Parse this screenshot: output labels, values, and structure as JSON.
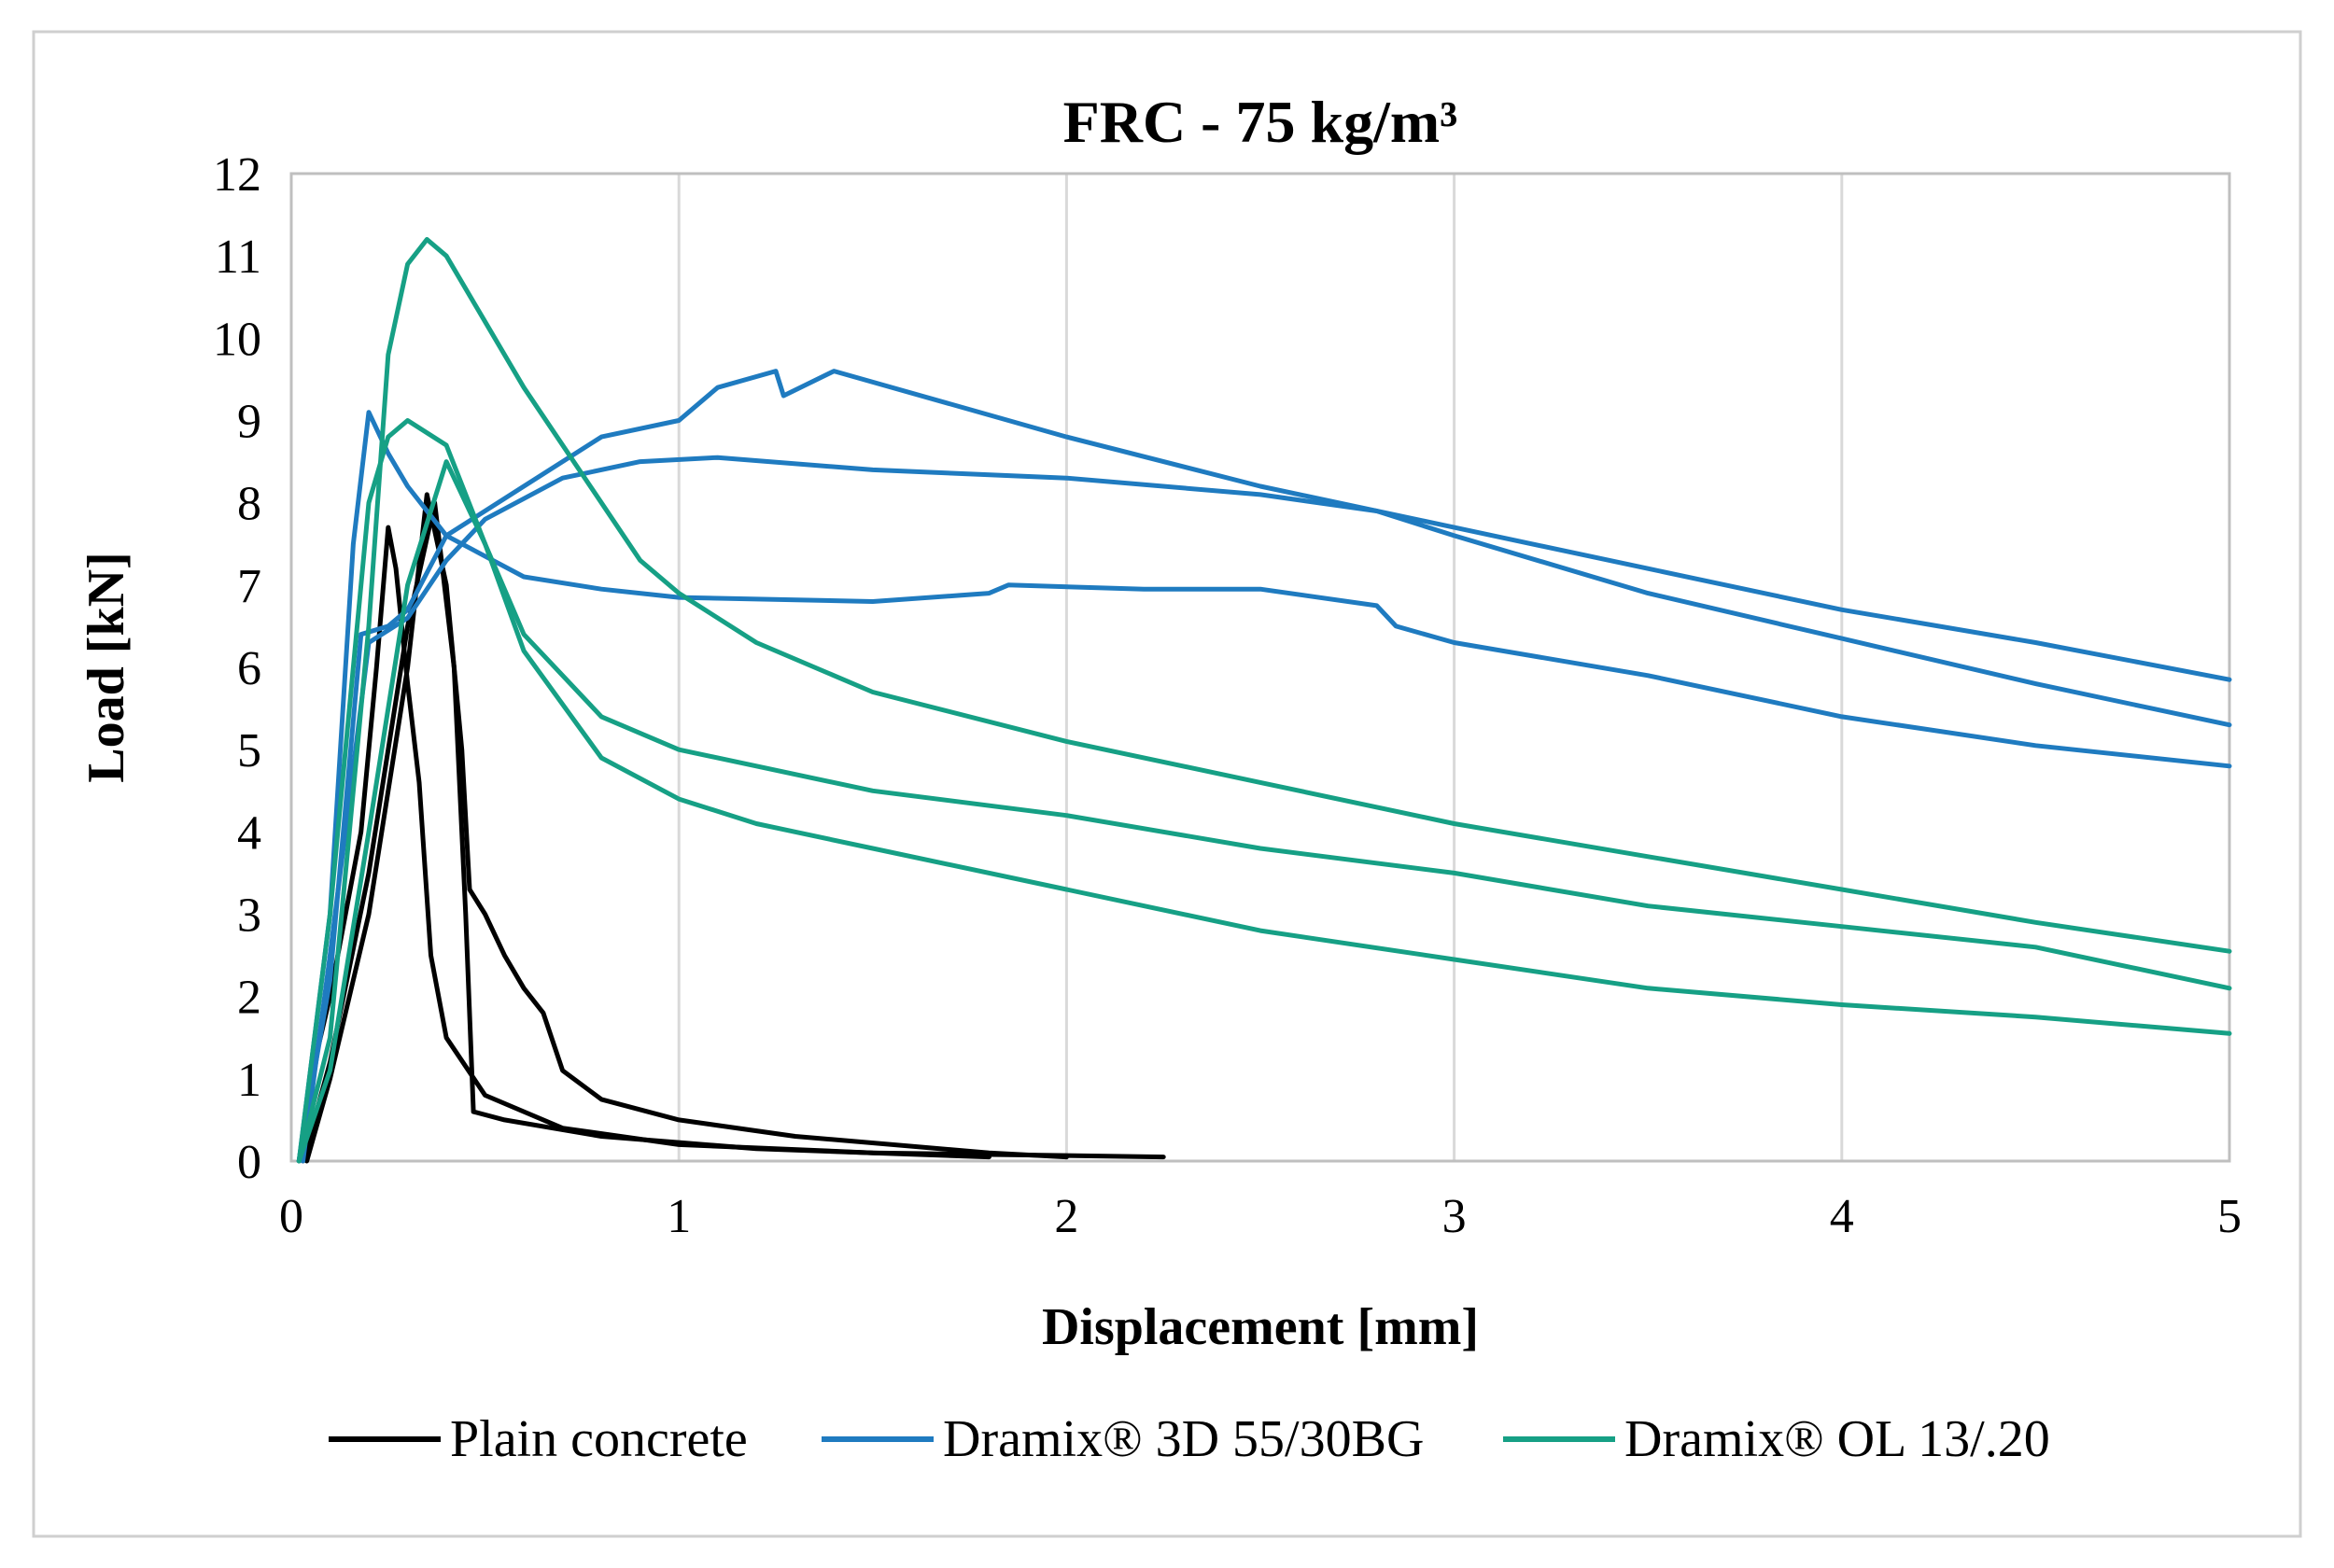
{
  "chart_data": {
    "type": "line",
    "title": "FRC - 75 kg/m³",
    "xlabel": "Displacement [mm]",
    "ylabel": "Load [kN]",
    "xlim": [
      0,
      5
    ],
    "ylim": [
      0,
      12
    ],
    "x_ticks": [
      "0",
      "1",
      "2",
      "3",
      "4",
      "5"
    ],
    "y_ticks": [
      "0",
      "1",
      "2",
      "3",
      "4",
      "5",
      "6",
      "7",
      "8",
      "9",
      "10",
      "11",
      "12"
    ],
    "grid": "vertical",
    "legend": "bottom",
    "legend_entries": [
      {
        "name": "Plain concrete",
        "color": "#000000"
      },
      {
        "name": "Dramix® 3D 55/30BG",
        "color": "#1f7bc0"
      },
      {
        "name": "Dramix® OL 13/.20",
        "color": "#16a085"
      }
    ],
    "series": [
      {
        "group": "Plain concrete",
        "color": "#000000",
        "points": [
          [
            0.02,
            0
          ],
          [
            0.05,
            1
          ],
          [
            0.1,
            2
          ],
          [
            0.18,
            4
          ],
          [
            0.22,
            6
          ],
          [
            0.25,
            7.7
          ],
          [
            0.27,
            7.2
          ],
          [
            0.3,
            5.8
          ],
          [
            0.33,
            4.6
          ],
          [
            0.36,
            2.5
          ],
          [
            0.4,
            1.5
          ],
          [
            0.5,
            0.8
          ],
          [
            0.7,
            0.4
          ],
          [
            1,
            0.2
          ],
          [
            1.5,
            0.1
          ],
          [
            2.25,
            0.05
          ]
        ]
      },
      {
        "group": "Plain concrete",
        "color": "#000000",
        "points": [
          [
            0.04,
            0
          ],
          [
            0.1,
            1
          ],
          [
            0.2,
            3
          ],
          [
            0.3,
            6
          ],
          [
            0.35,
            8.1
          ],
          [
            0.4,
            7
          ],
          [
            0.44,
            5
          ],
          [
            0.46,
            3.3
          ],
          [
            0.5,
            3
          ],
          [
            0.55,
            2.5
          ],
          [
            0.6,
            2.1
          ],
          [
            0.65,
            1.8
          ],
          [
            0.7,
            1.1
          ],
          [
            0.8,
            0.75
          ],
          [
            1,
            0.5
          ],
          [
            1.3,
            0.3
          ],
          [
            1.8,
            0.1
          ],
          [
            2,
            0.05
          ]
        ]
      },
      {
        "group": "Plain concrete",
        "color": "#000000",
        "points": [
          [
            0.03,
            0
          ],
          [
            0.1,
            1.2
          ],
          [
            0.2,
            3.5
          ],
          [
            0.3,
            6.5
          ],
          [
            0.37,
            8
          ],
          [
            0.42,
            6
          ],
          [
            0.45,
            3
          ],
          [
            0.47,
            0.6
          ],
          [
            0.55,
            0.5
          ],
          [
            0.8,
            0.3
          ],
          [
            1.2,
            0.15
          ],
          [
            1.8,
            0.05
          ]
        ]
      },
      {
        "group": "Dramix® 3D 55/30BG",
        "color": "#1f7bc0",
        "points": [
          [
            0.02,
            0
          ],
          [
            0.1,
            3
          ],
          [
            0.16,
            7.5
          ],
          [
            0.2,
            9.1
          ],
          [
            0.25,
            8.6
          ],
          [
            0.3,
            8.2
          ],
          [
            0.4,
            7.6
          ],
          [
            0.6,
            7.1
          ],
          [
            0.8,
            6.95
          ],
          [
            1,
            6.85
          ],
          [
            1.5,
            6.8
          ],
          [
            1.8,
            6.9
          ],
          [
            1.85,
            7
          ],
          [
            2.2,
            6.95
          ],
          [
            2.5,
            6.95
          ],
          [
            2.8,
            6.75
          ],
          [
            2.85,
            6.5
          ],
          [
            3,
            6.3
          ],
          [
            3.5,
            5.9
          ],
          [
            4,
            5.4
          ],
          [
            4.5,
            5.05
          ],
          [
            5,
            4.8
          ]
        ]
      },
      {
        "group": "Dramix® 3D 55/30BG",
        "color": "#1f7bc0",
        "points": [
          [
            0.03,
            0
          ],
          [
            0.1,
            2.5
          ],
          [
            0.2,
            6.3
          ],
          [
            0.3,
            6.6
          ],
          [
            0.4,
            7.3
          ],
          [
            0.5,
            7.8
          ],
          [
            0.7,
            8.3
          ],
          [
            0.9,
            8.5
          ],
          [
            1.1,
            8.55
          ],
          [
            1.5,
            8.4
          ],
          [
            2,
            8.3
          ],
          [
            2.5,
            8.1
          ],
          [
            2.8,
            7.9
          ],
          [
            3,
            7.6
          ],
          [
            3.5,
            6.9
          ],
          [
            4,
            6.35
          ],
          [
            4.5,
            5.8
          ],
          [
            5,
            5.3
          ]
        ]
      },
      {
        "group": "Dramix® 3D 55/30BG",
        "color": "#1f7bc0",
        "points": [
          [
            0.02,
            0
          ],
          [
            0.1,
            2.2
          ],
          [
            0.18,
            6.4
          ],
          [
            0.25,
            6.5
          ],
          [
            0.3,
            6.7
          ],
          [
            0.4,
            7.6
          ],
          [
            0.6,
            8.2
          ],
          [
            0.8,
            8.8
          ],
          [
            1,
            9
          ],
          [
            1.1,
            9.4
          ],
          [
            1.25,
            9.6
          ],
          [
            1.27,
            9.3
          ],
          [
            1.4,
            9.6
          ],
          [
            2,
            8.8
          ],
          [
            2.5,
            8.2
          ],
          [
            3,
            7.7
          ],
          [
            3.5,
            7.2
          ],
          [
            4,
            6.7
          ],
          [
            4.5,
            6.3
          ],
          [
            5,
            5.85
          ]
        ]
      },
      {
        "group": "Dramix® OL 13/.20",
        "color": "#16a085",
        "points": [
          [
            0.02,
            0
          ],
          [
            0.1,
            3
          ],
          [
            0.2,
            8
          ],
          [
            0.25,
            8.8
          ],
          [
            0.3,
            9
          ],
          [
            0.4,
            8.7
          ],
          [
            0.5,
            7.5
          ],
          [
            0.6,
            6.4
          ],
          [
            0.8,
            5.4
          ],
          [
            1,
            5
          ],
          [
            1.5,
            4.5
          ],
          [
            2,
            4.2
          ],
          [
            2.5,
            3.8
          ],
          [
            3,
            3.5
          ],
          [
            3.5,
            3.1
          ],
          [
            4,
            2.85
          ],
          [
            4.5,
            2.6
          ],
          [
            5,
            2.1
          ]
        ]
      },
      {
        "group": "Dramix® OL 13/.20",
        "color": "#16a085",
        "points": [
          [
            0.02,
            0
          ],
          [
            0.1,
            1.5
          ],
          [
            0.2,
            6.5
          ],
          [
            0.25,
            9.8
          ],
          [
            0.3,
            10.9
          ],
          [
            0.35,
            11.2
          ],
          [
            0.4,
            11
          ],
          [
            0.5,
            10.2
          ],
          [
            0.6,
            9.4
          ],
          [
            0.8,
            8
          ],
          [
            0.9,
            7.3
          ],
          [
            1,
            6.9
          ],
          [
            1.2,
            6.3
          ],
          [
            1.5,
            5.7
          ],
          [
            2,
            5.1
          ],
          [
            2.5,
            4.6
          ],
          [
            3,
            4.1
          ],
          [
            3.5,
            3.7
          ],
          [
            4,
            3.3
          ],
          [
            4.5,
            2.9
          ],
          [
            5,
            2.55
          ]
        ]
      },
      {
        "group": "Dramix® OL 13/.20",
        "color": "#16a085",
        "points": [
          [
            0.02,
            0
          ],
          [
            0.1,
            1.1
          ],
          [
            0.2,
            4
          ],
          [
            0.3,
            7
          ],
          [
            0.4,
            8.5
          ],
          [
            0.5,
            7.5
          ],
          [
            0.6,
            6.2
          ],
          [
            0.8,
            4.9
          ],
          [
            1,
            4.4
          ],
          [
            1.2,
            4.1
          ],
          [
            1.5,
            3.8
          ],
          [
            2,
            3.3
          ],
          [
            2.5,
            2.8
          ],
          [
            3,
            2.45
          ],
          [
            3.5,
            2.1
          ],
          [
            4,
            1.9
          ],
          [
            4.5,
            1.75
          ],
          [
            5,
            1.55
          ]
        ]
      }
    ]
  }
}
